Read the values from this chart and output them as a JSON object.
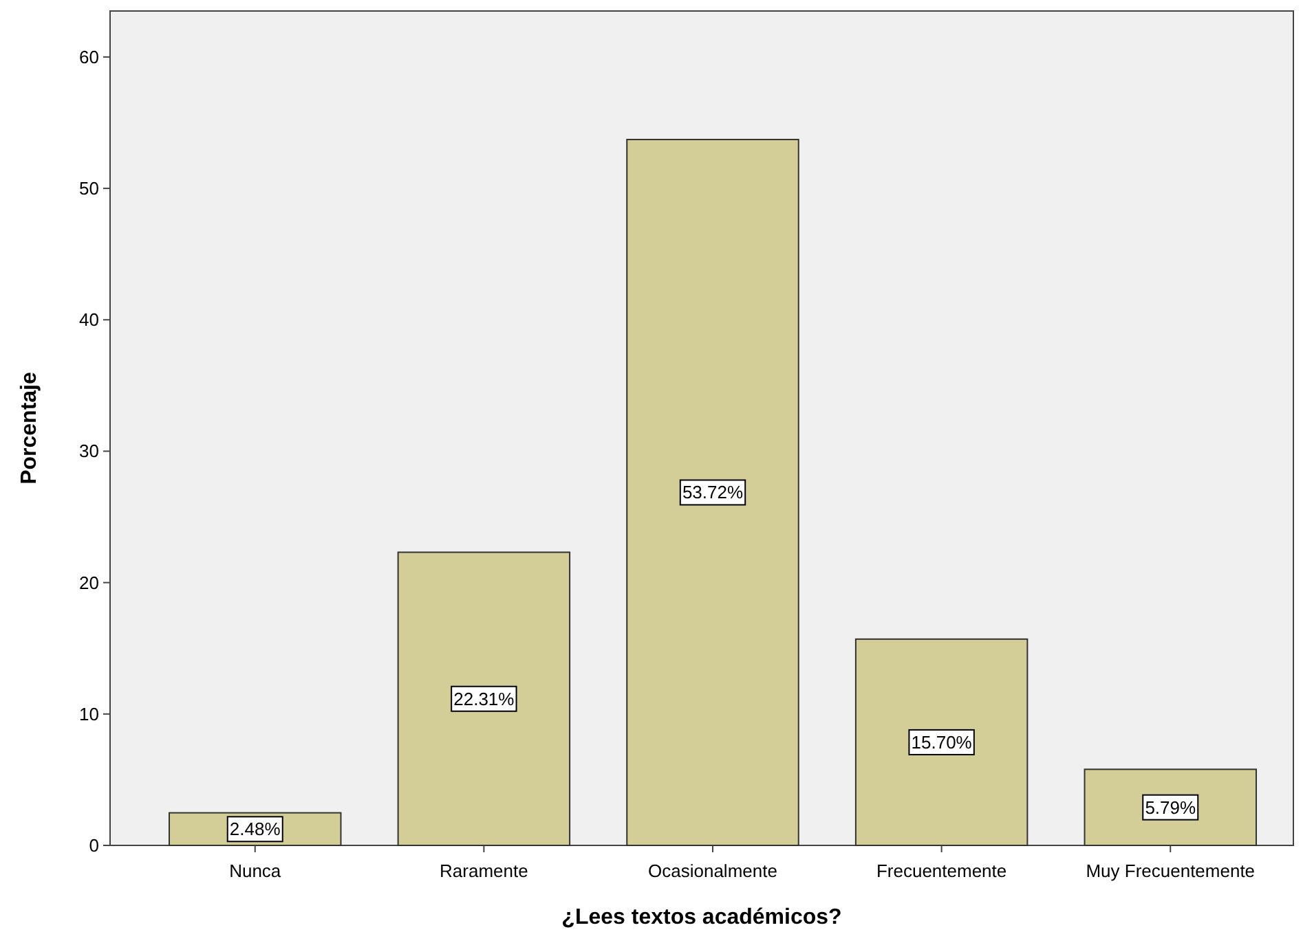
{
  "chart_data": {
    "type": "bar",
    "xlabel": "¿Lees textos académicos?",
    "ylabel": "Porcentaje",
    "categories": [
      "Nunca",
      "Raramente",
      "Ocasionalmente",
      "Frecuentemente",
      "Muy Frecuentemente"
    ],
    "values": [
      2.48,
      22.31,
      53.72,
      15.7,
      5.79
    ],
    "value_labels": [
      "2.48%",
      "22.31%",
      "53.72%",
      "15.70%",
      "5.79%"
    ],
    "color": "#d3ce97",
    "ylim": [
      0,
      63.5
    ],
    "yticks": [
      0,
      10,
      20,
      30,
      40,
      50,
      60
    ],
    "grid": false
  }
}
